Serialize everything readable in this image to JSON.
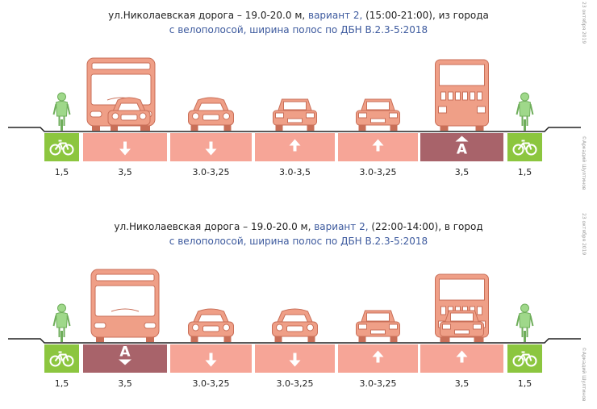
{
  "watermark_author": "©Аркадий Шултинов",
  "panels": [
    {
      "title_main": "ул.Николаевская дорога – 19.0-20.0 м, ",
      "title_variant": "вариант 2,",
      "title_rest": " (15:00-21:00), из города",
      "subtitle": "с велополосой, ширина полос по ДБН В.2.3-5:2018",
      "date": "23 октября 2019",
      "lanes": [
        {
          "type": "bike",
          "width": "1,5",
          "arrow": "bike-icon",
          "vehicle": "cyclist"
        },
        {
          "type": "lane",
          "width": "3,5",
          "arrow": "down",
          "vehicle": "bus-car"
        },
        {
          "type": "lane",
          "width": "3.0-3,25",
          "arrow": "down",
          "vehicle": "car-front"
        },
        {
          "type": "lane",
          "width": "3.0-3,5",
          "arrow": "up",
          "vehicle": "car-rear"
        },
        {
          "type": "lane",
          "width": "3.0-3,25",
          "arrow": "up",
          "vehicle": "car-rear"
        },
        {
          "type": "bus",
          "width": "3,5",
          "arrow": "up-A",
          "vehicle": "bus-rear"
        },
        {
          "type": "bike",
          "width": "1,5",
          "arrow": "bike-icon",
          "vehicle": "cyclist"
        }
      ]
    },
    {
      "title_main": "ул.Николаевская дорога – 19.0-20.0 м, ",
      "title_variant": "вариант 2,",
      "title_rest": " (22:00-14:00), в город",
      "subtitle": "с велополосой, ширина полос по ДБН В.2.3-5:2018",
      "date": "23 октября 2019",
      "lanes": [
        {
          "type": "bike",
          "width": "1,5",
          "arrow": "bike-icon",
          "vehicle": "cyclist"
        },
        {
          "type": "bus",
          "width": "3,5",
          "arrow": "down-A",
          "vehicle": "bus-front"
        },
        {
          "type": "lane",
          "width": "3.0-3,25",
          "arrow": "down",
          "vehicle": "car-front"
        },
        {
          "type": "lane",
          "width": "3.0-3,25",
          "arrow": "down",
          "vehicle": "car-front"
        },
        {
          "type": "lane",
          "width": "3.0-3,25",
          "arrow": "up",
          "vehicle": "car-rear"
        },
        {
          "type": "lane",
          "width": "3,5",
          "arrow": "up",
          "vehicle": "bus-car-rear"
        },
        {
          "type": "bike",
          "width": "1,5",
          "arrow": "bike-icon",
          "vehicle": "cyclist"
        }
      ]
    }
  ],
  "colors": {
    "lane": "#f6a597",
    "bus_lane": "#a8636a",
    "bike_lane": "#8cc63f",
    "vehicle": "#ef9f87",
    "vehicle_stroke": "#c96f58",
    "cyclist": "#9fd88a",
    "curb": "#222222"
  }
}
